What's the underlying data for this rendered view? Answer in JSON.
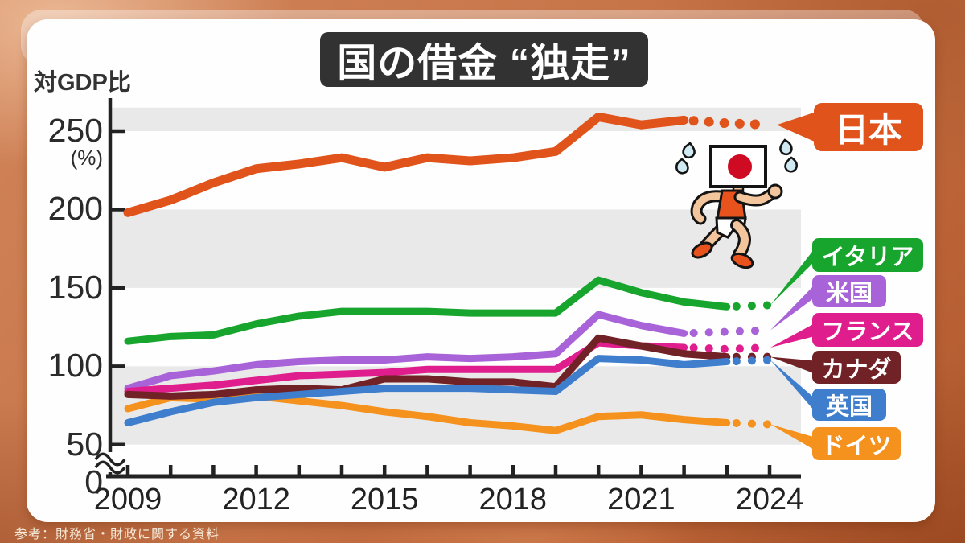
{
  "title": "国の借金 “独走”",
  "y_axis": {
    "title": "対GDP比",
    "unit": "(%)",
    "ticks": [
      250,
      200,
      150,
      100,
      50
    ],
    "zero": "0"
  },
  "x_axis": {
    "start": 2009,
    "end": 2024,
    "labeled_years": [
      2009,
      2012,
      2015,
      2018,
      2021,
      2024
    ]
  },
  "source": "参考：財務省・財政に関する資料",
  "illustration": "runner-with-japan-flag-head",
  "chart_data": {
    "type": "line",
    "title": "国の借金 “独走”",
    "ylabel": "対GDP比",
    "unit": "%",
    "ylim": [
      0,
      265
    ],
    "axis_break_between": [
      0,
      50
    ],
    "grid_bands_values": [
      [
        250,
        265
      ],
      [
        150,
        200
      ],
      [
        50,
        100
      ]
    ],
    "band_color": "#e9e9e9",
    "legend_position": "right-labels",
    "x": [
      2009,
      2010,
      2011,
      2012,
      2013,
      2014,
      2015,
      2016,
      2017,
      2018,
      2019,
      2020,
      2021,
      2022,
      2023,
      2024
    ],
    "note": "dotted tail = estimates to 2024",
    "series": [
      {
        "id": "japan",
        "name": "日本",
        "color": "#e0531a",
        "solid_until": 2022,
        "values": [
          198,
          206,
          217,
          226,
          229,
          233,
          227,
          233,
          231,
          233,
          237,
          259,
          254,
          257,
          255,
          254
        ]
      },
      {
        "id": "italy",
        "name": "イタリア",
        "color": "#18a52e",
        "solid_until": 2023,
        "values": [
          116,
          119,
          120,
          127,
          132,
          135,
          135,
          135,
          134,
          134,
          134,
          155,
          147,
          141,
          138,
          139
        ]
      },
      {
        "id": "usa",
        "name": "米国",
        "color": "#a863d8",
        "solid_until": 2022,
        "values": [
          86,
          94,
          97,
          101,
          103,
          104,
          104,
          106,
          105,
          106,
          108,
          133,
          126,
          121,
          122,
          123
        ]
      },
      {
        "id": "france",
        "name": "フランス",
        "color": "#e01d8d",
        "solid_until": 2022,
        "values": [
          84,
          86,
          88,
          91,
          94,
          95,
          96,
          98,
          98,
          98,
          98,
          115,
          113,
          112,
          111,
          112
        ]
      },
      {
        "id": "canada",
        "name": "カナダ",
        "color": "#702226",
        "solid_until": 2023,
        "values": [
          82,
          81,
          82,
          85,
          86,
          85,
          92,
          92,
          90,
          90,
          87,
          118,
          113,
          108,
          106,
          106
        ]
      },
      {
        "id": "uk",
        "name": "英国",
        "color": "#3e7ecd",
        "solid_until": 2023,
        "values": [
          64,
          71,
          77,
          80,
          82,
          84,
          86,
          86,
          86,
          85,
          84,
          105,
          104,
          101,
          103,
          104
        ]
      },
      {
        "id": "germany",
        "name": "ドイツ",
        "color": "#f5921e",
        "solid_until": 2023,
        "values": [
          73,
          80,
          79,
          81,
          78,
          75,
          71,
          68,
          64,
          62,
          59,
          68,
          69,
          66,
          64,
          63
        ]
      }
    ]
  }
}
